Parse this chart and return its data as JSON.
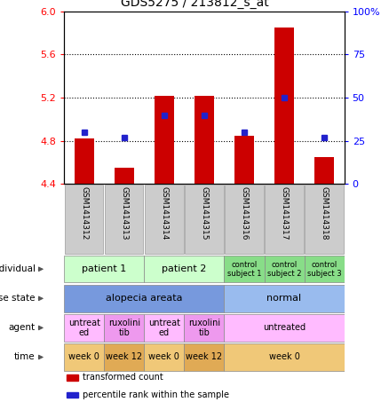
{
  "title": "GDS5275 / 213812_s_at",
  "samples": [
    "GSM1414312",
    "GSM1414313",
    "GSM1414314",
    "GSM1414315",
    "GSM1414316",
    "GSM1414317",
    "GSM1414318"
  ],
  "transformed_count": [
    4.82,
    4.55,
    5.22,
    5.22,
    4.85,
    5.85,
    4.65
  ],
  "percentile_rank": [
    30,
    27,
    40,
    40,
    30,
    50,
    27
  ],
  "ylim_left": [
    4.4,
    6.0
  ],
  "ylim_right": [
    0,
    100
  ],
  "yticks_left": [
    4.4,
    4.8,
    5.2,
    5.6,
    6.0
  ],
  "yticks_right": [
    0,
    25,
    50,
    75,
    100
  ],
  "ytick_labels_right": [
    "0",
    "25",
    "50",
    "75",
    "100%"
  ],
  "bar_color": "#cc0000",
  "dot_color": "#2222cc",
  "annotation_rows": [
    {
      "label": "individual",
      "cells": [
        {
          "text": "patient 1",
          "span": 2,
          "color": "#ccffcc",
          "fontsize": 8
        },
        {
          "text": "patient 2",
          "span": 2,
          "color": "#ccffcc",
          "fontsize": 8
        },
        {
          "text": "control\nsubject 1",
          "span": 1,
          "color": "#88dd88",
          "fontsize": 6
        },
        {
          "text": "control\nsubject 2",
          "span": 1,
          "color": "#88dd88",
          "fontsize": 6
        },
        {
          "text": "control\nsubject 3",
          "span": 1,
          "color": "#88dd88",
          "fontsize": 6
        }
      ]
    },
    {
      "label": "disease state",
      "cells": [
        {
          "text": "alopecia areata",
          "span": 4,
          "color": "#7799dd",
          "fontsize": 8
        },
        {
          "text": "normal",
          "span": 3,
          "color": "#99bbee",
          "fontsize": 8
        }
      ]
    },
    {
      "label": "agent",
      "cells": [
        {
          "text": "untreat\ned",
          "span": 1,
          "color": "#ffbbff",
          "fontsize": 7
        },
        {
          "text": "ruxolini\ntib",
          "span": 1,
          "color": "#ee99ee",
          "fontsize": 7
        },
        {
          "text": "untreat\ned",
          "span": 1,
          "color": "#ffbbff",
          "fontsize": 7
        },
        {
          "text": "ruxolini\ntib",
          "span": 1,
          "color": "#ee99ee",
          "fontsize": 7
        },
        {
          "text": "untreated",
          "span": 3,
          "color": "#ffbbff",
          "fontsize": 7
        }
      ]
    },
    {
      "label": "time",
      "cells": [
        {
          "text": "week 0",
          "span": 1,
          "color": "#f0c878",
          "fontsize": 7
        },
        {
          "text": "week 12",
          "span": 1,
          "color": "#e0aa55",
          "fontsize": 7
        },
        {
          "text": "week 0",
          "span": 1,
          "color": "#f0c878",
          "fontsize": 7
        },
        {
          "text": "week 12",
          "span": 1,
          "color": "#e0aa55",
          "fontsize": 7
        },
        {
          "text": "week 0",
          "span": 3,
          "color": "#f0c878",
          "fontsize": 7
        }
      ]
    }
  ],
  "legend_items": [
    {
      "color": "#cc0000",
      "label": "transformed count"
    },
    {
      "color": "#2222cc",
      "label": "percentile rank within the sample"
    }
  ],
  "fig_w": 4.38,
  "fig_h": 4.53,
  "dpi": 100
}
